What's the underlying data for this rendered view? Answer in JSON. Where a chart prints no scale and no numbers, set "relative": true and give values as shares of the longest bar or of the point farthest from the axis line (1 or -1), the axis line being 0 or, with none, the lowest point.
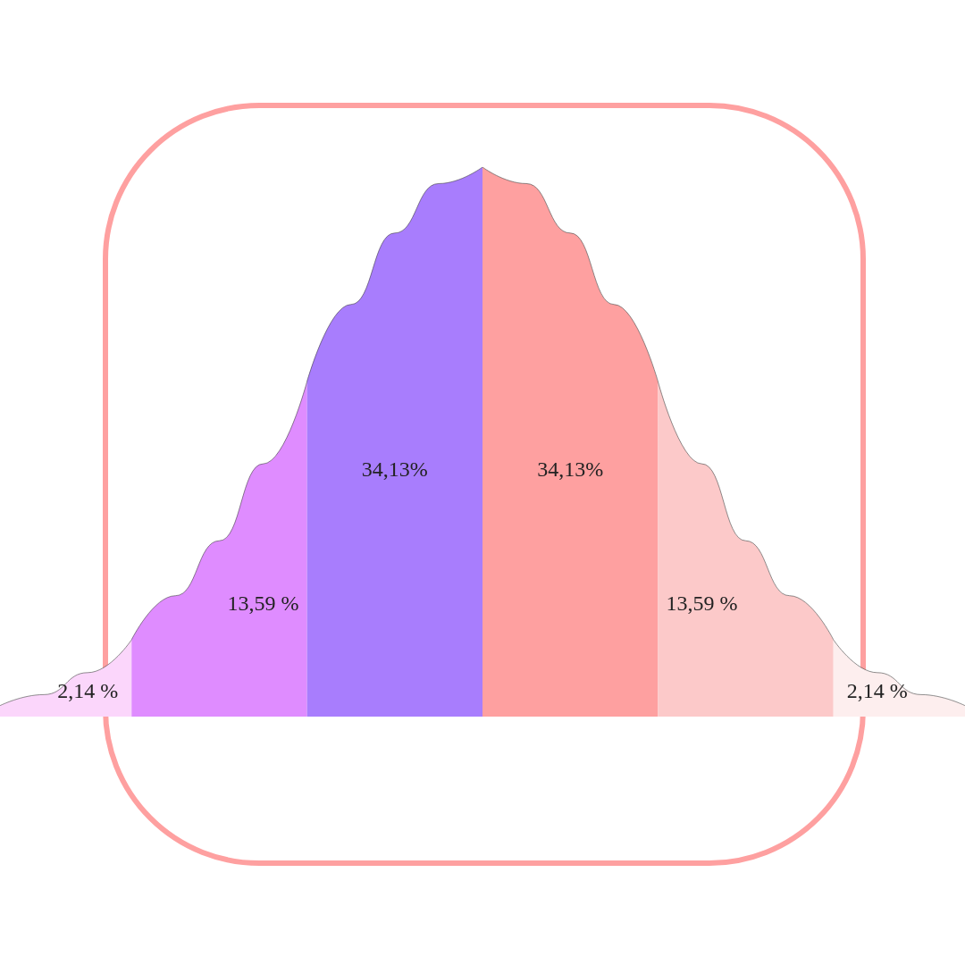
{
  "chart_data": {
    "type": "area",
    "relative": true,
    "categories": [
      null,
      null,
      null,
      null,
      null,
      null,
      null,
      null,
      null,
      null,
      null,
      null,
      null,
      null,
      null,
      null,
      null,
      null,
      null,
      null,
      null,
      null,
      null
    ],
    "annotations": [
      "2,14 %",
      "13,59 %",
      "34,13%",
      "34,13%",
      "13,59 %",
      "2,14 %"
    ],
    "series": [
      {
        "color": "#fbd6fb",
        "values": [
          0.02,
          0.04,
          0.08,
          0.14,
          null,
          null,
          null,
          null,
          null,
          null,
          null,
          null,
          null,
          null,
          null,
          null,
          null,
          null,
          null,
          null,
          null,
          null,
          null
        ]
      },
      {
        "color": "#df8cff",
        "values": [
          null,
          null,
          null,
          0.14,
          0.22,
          0.32,
          0.46,
          0.61,
          null,
          null,
          null,
          null,
          null,
          null,
          null,
          null,
          null,
          null,
          null,
          null,
          null,
          null,
          null
        ]
      },
      {
        "color": "#a87dfd",
        "values": [
          null,
          null,
          null,
          null,
          null,
          null,
          null,
          0.61,
          0.75,
          0.88,
          0.97,
          1,
          null,
          null,
          null,
          null,
          null,
          null,
          null,
          null,
          null,
          null,
          null
        ]
      },
      {
        "color": "#fea0a0",
        "values": [
          null,
          null,
          null,
          null,
          null,
          null,
          null,
          null,
          null,
          null,
          null,
          1,
          0.97,
          0.88,
          0.75,
          0.61,
          null,
          null,
          null,
          null,
          null,
          null,
          null
        ]
      },
      {
        "color": "#fcc9c9",
        "values": [
          null,
          null,
          null,
          null,
          null,
          null,
          null,
          null,
          null,
          null,
          null,
          null,
          null,
          null,
          null,
          0.61,
          0.46,
          0.32,
          0.22,
          0.14,
          null,
          null,
          null
        ]
      },
      {
        "color": "#fdeeee",
        "values": [
          null,
          null,
          null,
          null,
          null,
          null,
          null,
          null,
          null,
          null,
          null,
          null,
          null,
          null,
          null,
          null,
          null,
          null,
          null,
          0.14,
          0.08,
          0.04,
          0.02
        ]
      }
    ]
  }
}
